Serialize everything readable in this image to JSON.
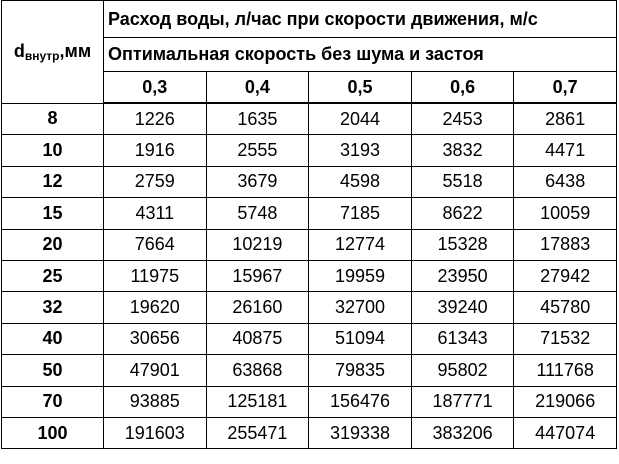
{
  "header": {
    "corner": {
      "main": "d",
      "sub": "внутр",
      "suffix": ",мм"
    },
    "title": "Расход воды, л/час при скорости движения, м/с",
    "subtitle": "Оптимальная скорость без шума и застоя",
    "speeds": [
      "0,3",
      "0,4",
      "0,5",
      "0,6",
      "0,7"
    ]
  },
  "table": {
    "rows": [
      [
        8,
        1226,
        1635,
        2044,
        2453,
        2861
      ],
      [
        10,
        1916,
        2555,
        3193,
        3832,
        4471
      ],
      [
        12,
        2759,
        3679,
        4598,
        5518,
        6438
      ],
      [
        15,
        4311,
        5748,
        7185,
        8622,
        10059
      ],
      [
        20,
        7664,
        10219,
        12774,
        15328,
        17883
      ],
      [
        25,
        11975,
        15967,
        19959,
        23950,
        27942
      ],
      [
        32,
        19620,
        26160,
        32700,
        39240,
        45780
      ],
      [
        40,
        30656,
        40875,
        51094,
        61343,
        71532
      ],
      [
        50,
        47901,
        63868,
        79835,
        95802,
        111768
      ],
      [
        70,
        93885,
        125181,
        156476,
        187771,
        219066
      ],
      [
        100,
        191603,
        255471,
        319338,
        383206,
        447074
      ]
    ]
  }
}
